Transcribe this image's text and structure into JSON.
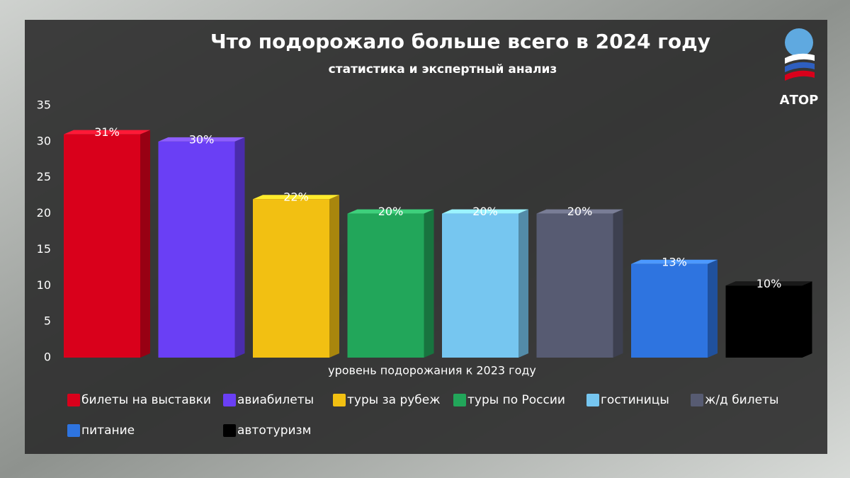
{
  "chart_data": {
    "type": "bar",
    "title": "Что подорожало больше всего в 2024 году",
    "subtitle": "статистика и экспертный анализ",
    "categories": [
      "уровень подорожания к 2023 году"
    ],
    "series": [
      {
        "name": "билеты на выставки",
        "color": "#d9001b",
        "values": [
          31
        ],
        "value_labels": [
          "31%"
        ]
      },
      {
        "name": "авиабилеты",
        "color": "#6a3ff5",
        "values": [
          30
        ],
        "value_labels": [
          "30%"
        ]
      },
      {
        "name": "туры за рубеж",
        "color": "#f2c012",
        "values": [
          22
        ],
        "value_labels": [
          "22%"
        ]
      },
      {
        "name": "туры по России",
        "color": "#22a65a",
        "values": [
          20
        ],
        "value_labels": [
          "20%"
        ]
      },
      {
        "name": "гостиницы",
        "color": "#76c6f0",
        "values": [
          20
        ],
        "value_labels": [
          "20%"
        ]
      },
      {
        "name": "ж/д билеты",
        "color": "#575b72",
        "values": [
          20
        ],
        "value_labels": [
          "20%"
        ]
      },
      {
        "name": "питание",
        "color": "#2e74e0",
        "values": [
          13
        ],
        "value_labels": [
          "13%"
        ]
      },
      {
        "name": "автотуризм",
        "color": "#000000",
        "values": [
          10
        ],
        "value_labels": [
          "10%"
        ]
      }
    ],
    "ylim": [
      0,
      35
    ],
    "yticks": [
      0,
      5,
      10,
      15,
      20,
      25,
      30,
      35
    ],
    "grid": false,
    "legend": "bottom"
  },
  "logo": "АТОР"
}
